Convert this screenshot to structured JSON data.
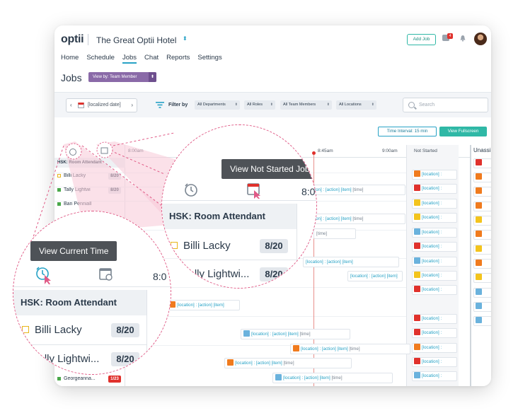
{
  "app": {
    "logo": "optii",
    "hotel_name": "The Great Optii Hotel",
    "add_job": "Add Job",
    "chat_badge": "4"
  },
  "nav": [
    "Home",
    "Schedule",
    "Jobs",
    "Chat",
    "Reports",
    "Settings"
  ],
  "page": {
    "title": "Jobs",
    "view_by": "View by: Team Member"
  },
  "filters": {
    "date": "[localized date]",
    "filter_by": "Filter by",
    "departments": "All Departments",
    "roles": "All Roles",
    "team_members": "All Team Members",
    "locations": "All Locations",
    "search_placeholder": "Search"
  },
  "board": {
    "time_interval": "Time Interval: 15 min",
    "view_fullscreen": "View Fullscreen",
    "times": [
      "8:00am",
      "8:45am",
      "9:00am"
    ],
    "not_started": "Not Started",
    "unassigned": "Unassi",
    "group": "HSK: Room Attendant",
    "employees": [
      {
        "name": "Billi Lacky",
        "count": "8/20"
      },
      {
        "name": "Tally Lightwi",
        "count": "8/20"
      },
      {
        "name": "Ban Penniall",
        "count": ""
      },
      {
        "name": "Georgeanna...",
        "count": "1/23"
      }
    ],
    "job_text": "[location] : [action] [item]",
    "job_short": "[ion] : [action] [item]",
    "time_text": "[time]",
    "loc_text": "[location] :"
  },
  "zoom": {
    "not_started_tooltip": "View Not Started Jobs",
    "current_time_tooltip": "View Current Time",
    "group": "HSK: Room Attendant",
    "emp1": "Billi Lacky",
    "emp1_count": "8/20",
    "emp2": "Tally Lightwi...",
    "emp2_count": "8/20",
    "time_partial": "8:0"
  },
  "colors": {
    "accent": "#27a2c6",
    "teal": "#2fb8a6",
    "purple": "#8a6aa8",
    "red": "#e0312c",
    "orange": "#f07b1e",
    "yellow": "#f3c41d",
    "blue": "#6ab2dd",
    "magenta_dash": "#e05a86"
  }
}
